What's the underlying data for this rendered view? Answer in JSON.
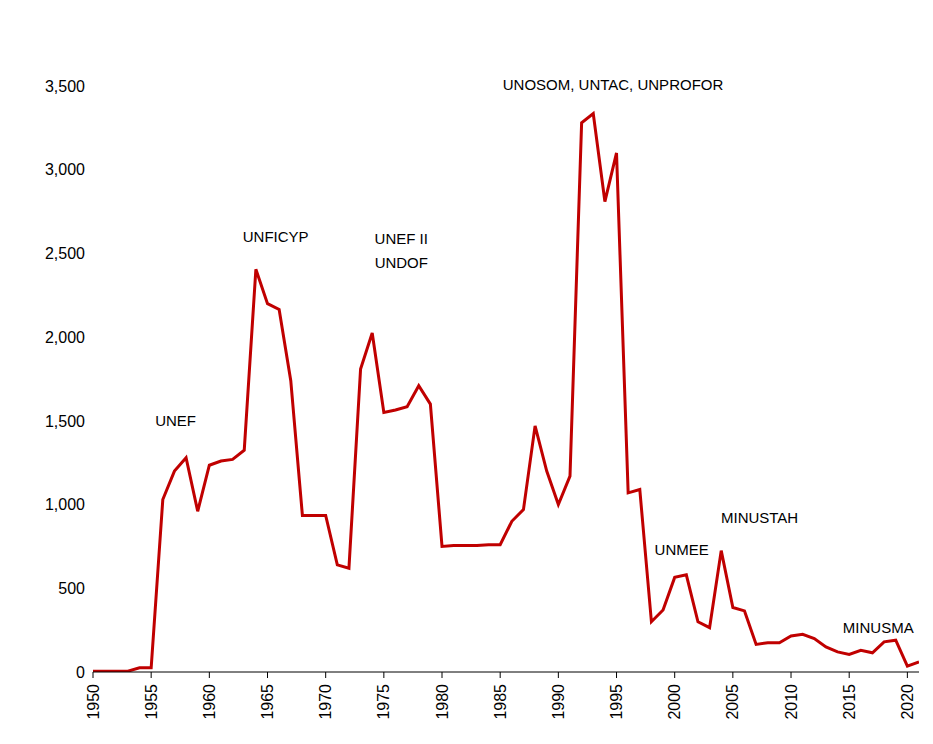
{
  "chart_data": {
    "type": "line",
    "x": [
      1950,
      1951,
      1952,
      1953,
      1954,
      1955,
      1956,
      1957,
      1958,
      1959,
      1960,
      1961,
      1962,
      1963,
      1964,
      1965,
      1966,
      1967,
      1968,
      1969,
      1970,
      1971,
      1972,
      1973,
      1974,
      1975,
      1976,
      1977,
      1978,
      1979,
      1980,
      1981,
      1982,
      1983,
      1984,
      1985,
      1986,
      1987,
      1988,
      1989,
      1990,
      1991,
      1992,
      1993,
      1994,
      1995,
      1996,
      1997,
      1998,
      1999,
      2000,
      2001,
      2002,
      2003,
      2004,
      2005,
      2006,
      2007,
      2008,
      2009,
      2010,
      2011,
      2012,
      2013,
      2014,
      2015,
      2016,
      2017,
      2018,
      2019,
      2020,
      2021
    ],
    "values": [
      5,
      5,
      5,
      5,
      25,
      25,
      1030,
      1200,
      1280,
      960,
      1235,
      1260,
      1270,
      1325,
      2405,
      2200,
      2165,
      1740,
      935,
      935,
      935,
      640,
      620,
      1810,
      2025,
      1550,
      1565,
      1585,
      1710,
      1600,
      750,
      755,
      755,
      755,
      760,
      760,
      900,
      970,
      1470,
      1200,
      1000,
      1170,
      3280,
      3335,
      2810,
      3100,
      1070,
      1090,
      300,
      370,
      565,
      580,
      300,
      265,
      725,
      385,
      365,
      165,
      175,
      175,
      215,
      225,
      200,
      150,
      120,
      105,
      130,
      115,
      180,
      190,
      35,
      60
    ],
    "color": "#c00000",
    "xlim": [
      1950,
      2021
    ],
    "xticks": [
      1950,
      1955,
      1960,
      1965,
      1970,
      1975,
      1980,
      1985,
      1990,
      1995,
      2000,
      2005,
      2010,
      2015,
      2020
    ],
    "ylim": [
      0,
      3500
    ],
    "yticks": [
      0,
      500,
      {
        "value": 1000,
        "label": "1,000"
      },
      {
        "value": 1500,
        "label": "1,500"
      },
      {
        "value": 2000,
        "label": "2,000"
      },
      {
        "value": 2500,
        "label": "2,500"
      },
      {
        "value": 3000,
        "label": "3,000"
      },
      {
        "value": 3500,
        "label": "3,500"
      }
    ],
    "grid": false,
    "annotations": [
      {
        "text": "UNEF",
        "x": 1957.1,
        "y": 1500
      },
      {
        "text": "UNFICYP",
        "x": 1965.7,
        "y": 2600
      },
      {
        "text": "UNEF II",
        "x": 1976.5,
        "y": 2590
      },
      {
        "text": "UNDOF",
        "x": 1976.5,
        "y": 2447
      },
      {
        "text": "UNOSOM, UNTAC, UNPROFOR",
        "x": 1994.7,
        "y": 3510
      },
      {
        "text": "UNMEE",
        "x": 2000.6,
        "y": 730
      },
      {
        "text": "MINUSTAH",
        "x": 2007.3,
        "y": 920
      },
      {
        "text": "MINUSMA",
        "x": 2017.5,
        "y": 265
      }
    ]
  }
}
